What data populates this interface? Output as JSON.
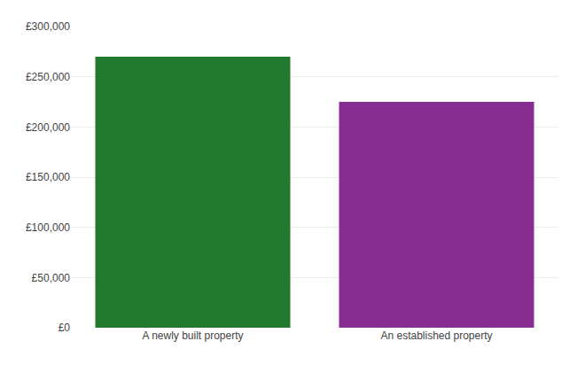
{
  "chart_data": {
    "type": "bar",
    "categories": [
      "A newly built property",
      "An established property"
    ],
    "values": [
      270000,
      225000
    ],
    "colors": [
      "#217a30",
      "#872d91"
    ],
    "ylim": [
      0,
      300000
    ],
    "yticks": [
      {
        "value": 0,
        "label": "£0"
      },
      {
        "value": 50000,
        "label": "£50,000"
      },
      {
        "value": 100000,
        "label": "£100,000"
      },
      {
        "value": 150000,
        "label": "£150,000"
      },
      {
        "value": 200000,
        "label": "£200,000"
      },
      {
        "value": 250000,
        "label": "£250,000"
      },
      {
        "value": 300000,
        "label": "£300,000"
      }
    ],
    "grid": true
  }
}
